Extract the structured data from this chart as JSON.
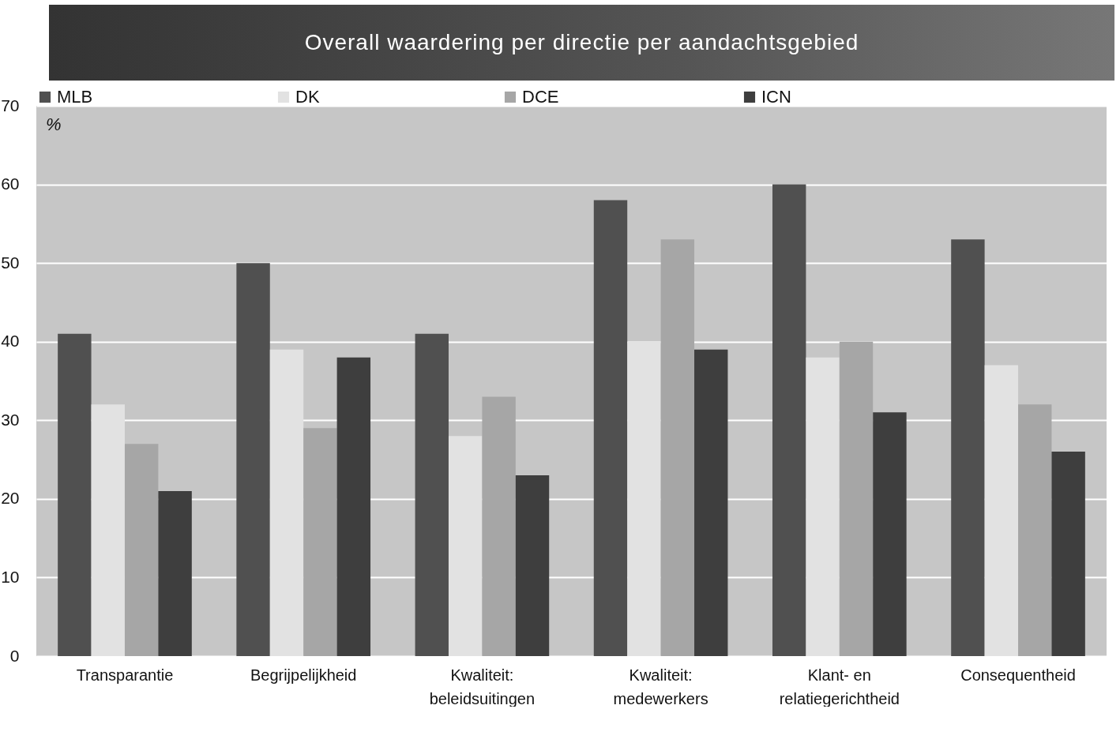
{
  "chart_data": {
    "type": "bar",
    "title": "Overall waardering per directie per aandachtsgebied",
    "categories": [
      "Transparantie",
      "Begrijpelijkheid",
      "Kwaliteit:\nbeleidsuitingen",
      "Kwaliteit:\nmedewerkers",
      "Klant- en\nrelatiegerichtheid",
      "Consequentheid"
    ],
    "series": [
      {
        "name": "MLB",
        "color": "#505050",
        "values": [
          41,
          50,
          41,
          58,
          60,
          53
        ]
      },
      {
        "name": "DK",
        "color": "#e2e2e2",
        "values": [
          32,
          39,
          28,
          40,
          38,
          37
        ]
      },
      {
        "name": "DCE",
        "color": "#a6a6a6",
        "values": [
          27,
          29,
          33,
          53,
          40,
          32
        ]
      },
      {
        "name": "ICN",
        "color": "#3e3e3e",
        "values": [
          21,
          38,
          23,
          39,
          31,
          26
        ]
      }
    ],
    "ylim": [
      0,
      70
    ],
    "yticks": [
      0,
      10,
      20,
      30,
      40,
      50,
      60,
      70
    ],
    "grid": "y",
    "legend": "top",
    "annotations": [
      "%"
    ]
  }
}
